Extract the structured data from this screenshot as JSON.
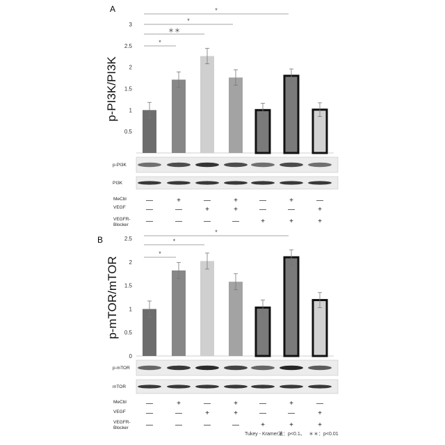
{
  "chart_data": [
    {
      "type": "bar",
      "panel": "A",
      "ylabel": "p-PI3K/PI3K",
      "ylim": [
        0,
        3
      ],
      "yticks": [
        "0.5",
        "1",
        "1.5",
        "2",
        "2.5",
        "3"
      ],
      "groups": 7,
      "values": [
        1.0,
        1.71,
        2.26,
        1.76,
        1.0,
        1.8,
        1.01
      ],
      "errors": [
        0.18,
        0.18,
        0.18,
        0.18,
        0.16,
        0.16,
        0.16
      ],
      "colors": [
        "#6d6d6d",
        "#878787",
        "#cfcfcf",
        "#a3a3a3",
        "#7a7a7a",
        "#7a7a7a",
        "#d2d2d2"
      ],
      "thick_border": [
        false,
        false,
        false,
        false,
        true,
        true,
        true
      ],
      "significance": [
        {
          "from": 1,
          "to": 2,
          "label": "*"
        },
        {
          "from": 1,
          "to": 3,
          "label": "＊＊"
        },
        {
          "from": 1,
          "to": 4,
          "label": "*"
        },
        {
          "from": 1,
          "to": 6,
          "label": "*"
        }
      ],
      "blots": [
        "p-PI3K",
        "PI3K"
      ]
    },
    {
      "type": "bar",
      "panel": "B",
      "ylabel": "p-mTOR/mTOR",
      "ylim": [
        0,
        2.5
      ],
      "yticks": [
        "0",
        "0.5",
        "1",
        "1.5",
        "2",
        "2.5"
      ],
      "groups": 7,
      "values": [
        1.0,
        1.82,
        2.02,
        1.58,
        1.03,
        2.1,
        1.19
      ],
      "errors": [
        0.17,
        0.17,
        0.17,
        0.17,
        0.16,
        0.16,
        0.16
      ],
      "colors": [
        "#6d6d6d",
        "#878787",
        "#cfcfcf",
        "#a3a3a3",
        "#7a7a7a",
        "#7a7a7a",
        "#d2d2d2"
      ],
      "thick_border": [
        false,
        false,
        false,
        false,
        true,
        true,
        true
      ],
      "significance": [
        {
          "from": 1,
          "to": 2,
          "label": "*"
        },
        {
          "from": 1,
          "to": 3,
          "label": "*"
        },
        {
          "from": 1,
          "to": 6,
          "label": "*"
        }
      ],
      "blots": [
        "p-mTOR",
        "mTOR"
      ]
    }
  ],
  "treatments": [
    {
      "label": "MeCbl",
      "signs": [
        "—",
        "+",
        "—",
        "+",
        "—",
        "+",
        "—"
      ]
    },
    {
      "label": "VEGF",
      "signs": [
        "—",
        "—",
        "+",
        "+",
        "—",
        "—",
        "+"
      ]
    },
    {
      "label": "VEGFR-",
      "label2": "Blocker",
      "signs": [
        "—",
        "—",
        "—",
        "—",
        "+",
        "+",
        "+"
      ]
    }
  ],
  "footer": {
    "method": "Tukey - Kramer法",
    "legend1": "＊：p<0.1、",
    "legend2": "＊＊：p<0.01"
  }
}
